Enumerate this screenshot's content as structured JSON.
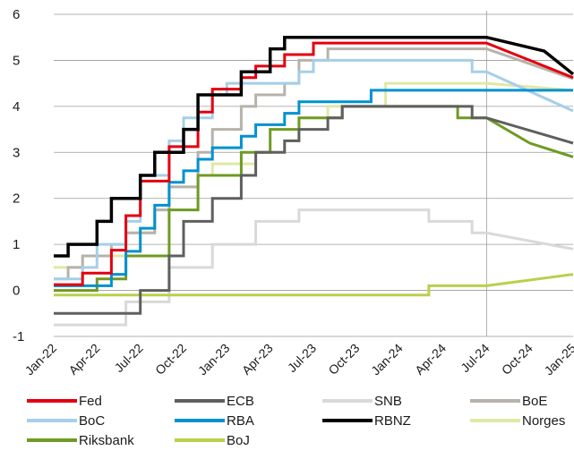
{
  "chart_data": {
    "type": "line",
    "title": "",
    "xlabel": "",
    "ylabel": "",
    "x_ticks": [
      "Jan-22",
      "Apr-22",
      "Jul-22",
      "Oct-22",
      "Jan-23",
      "Apr-23",
      "Jul-23",
      "Oct-23",
      "Jan-24",
      "Apr-24",
      "Jul-24",
      "Oct-24",
      "Jan-25"
    ],
    "y_ticks": [
      "6",
      "5",
      "4",
      "3",
      "2",
      "1",
      "0",
      "-1"
    ],
    "ylim": [
      -1,
      6
    ],
    "xlim": [
      "2022-01",
      "2025-01"
    ],
    "grid": "horizontal",
    "vertical_marker": "2024-07",
    "legend_position": "bottom",
    "series": [
      {
        "name": "Fed",
        "color": "#e3000f",
        "width": 3,
        "points": [
          [
            "2022-01",
            0.125
          ],
          [
            "2022-03",
            0.125
          ],
          [
            "2022-03",
            0.375
          ],
          [
            "2022-05",
            0.375
          ],
          [
            "2022-05",
            0.875
          ],
          [
            "2022-06",
            0.875
          ],
          [
            "2022-06",
            1.625
          ],
          [
            "2022-07",
            1.625
          ],
          [
            "2022-07",
            2.375
          ],
          [
            "2022-09",
            2.375
          ],
          [
            "2022-09",
            3.125
          ],
          [
            "2022-11",
            3.125
          ],
          [
            "2022-11",
            3.875
          ],
          [
            "2022-12",
            3.875
          ],
          [
            "2022-12",
            4.375
          ],
          [
            "2023-02",
            4.375
          ],
          [
            "2023-02",
            4.625
          ],
          [
            "2023-03",
            4.625
          ],
          [
            "2023-03",
            4.875
          ],
          [
            "2023-05",
            4.875
          ],
          [
            "2023-05",
            5.125
          ],
          [
            "2023-07",
            5.125
          ],
          [
            "2023-07",
            5.375
          ],
          [
            "2024-07",
            5.375
          ],
          [
            "2025-01",
            4.625
          ]
        ]
      },
      {
        "name": "ECB",
        "color": "#5f5f5f",
        "width": 3,
        "points": [
          [
            "2022-01",
            -0.5
          ],
          [
            "2022-07",
            -0.5
          ],
          [
            "2022-07",
            0.0
          ],
          [
            "2022-09",
            0.0
          ],
          [
            "2022-09",
            0.75
          ],
          [
            "2022-10",
            0.75
          ],
          [
            "2022-10",
            1.5
          ],
          [
            "2022-12",
            1.5
          ],
          [
            "2022-12",
            2.0
          ],
          [
            "2023-02",
            2.0
          ],
          [
            "2023-02",
            2.5
          ],
          [
            "2023-03",
            2.5
          ],
          [
            "2023-03",
            3.0
          ],
          [
            "2023-05",
            3.0
          ],
          [
            "2023-05",
            3.25
          ],
          [
            "2023-06",
            3.25
          ],
          [
            "2023-06",
            3.5
          ],
          [
            "2023-08",
            3.5
          ],
          [
            "2023-08",
            3.75
          ],
          [
            "2023-09",
            3.75
          ],
          [
            "2023-09",
            4.0
          ],
          [
            "2024-06",
            4.0
          ],
          [
            "2024-06",
            3.75
          ],
          [
            "2024-07",
            3.75
          ],
          [
            "2025-01",
            3.2
          ]
        ]
      },
      {
        "name": "SNB",
        "color": "#d9d9d9",
        "width": 3,
        "points": [
          [
            "2022-01",
            -0.75
          ],
          [
            "2022-06",
            -0.75
          ],
          [
            "2022-06",
            -0.25
          ],
          [
            "2022-09",
            -0.25
          ],
          [
            "2022-09",
            0.5
          ],
          [
            "2022-12",
            0.5
          ],
          [
            "2022-12",
            1.0
          ],
          [
            "2023-03",
            1.0
          ],
          [
            "2023-03",
            1.5
          ],
          [
            "2023-06",
            1.5
          ],
          [
            "2023-06",
            1.75
          ],
          [
            "2024-03",
            1.75
          ],
          [
            "2024-03",
            1.5
          ],
          [
            "2024-06",
            1.5
          ],
          [
            "2024-06",
            1.25
          ],
          [
            "2024-07",
            1.25
          ],
          [
            "2025-01",
            0.9
          ]
        ]
      },
      {
        "name": "BoE",
        "color": "#b7b2aa",
        "width": 3,
        "points": [
          [
            "2022-01",
            0.25
          ],
          [
            "2022-02",
            0.25
          ],
          [
            "2022-02",
            0.5
          ],
          [
            "2022-03",
            0.5
          ],
          [
            "2022-03",
            0.75
          ],
          [
            "2022-05",
            0.75
          ],
          [
            "2022-05",
            1.0
          ],
          [
            "2022-06",
            1.0
          ],
          [
            "2022-06",
            1.25
          ],
          [
            "2022-08",
            1.25
          ],
          [
            "2022-08",
            1.75
          ],
          [
            "2022-09",
            1.75
          ],
          [
            "2022-09",
            2.25
          ],
          [
            "2022-11",
            2.25
          ],
          [
            "2022-11",
            3.0
          ],
          [
            "2022-12",
            3.0
          ],
          [
            "2022-12",
            3.5
          ],
          [
            "2023-02",
            3.5
          ],
          [
            "2023-02",
            4.0
          ],
          [
            "2023-03",
            4.0
          ],
          [
            "2023-03",
            4.25
          ],
          [
            "2023-05",
            4.25
          ],
          [
            "2023-05",
            4.5
          ],
          [
            "2023-06",
            4.5
          ],
          [
            "2023-06",
            5.0
          ],
          [
            "2023-08",
            5.0
          ],
          [
            "2023-08",
            5.25
          ],
          [
            "2024-07",
            5.25
          ],
          [
            "2025-01",
            4.6
          ]
        ]
      },
      {
        "name": "BoC",
        "color": "#a5cfe8",
        "width": 3,
        "points": [
          [
            "2022-01",
            0.25
          ],
          [
            "2022-03",
            0.25
          ],
          [
            "2022-03",
            0.5
          ],
          [
            "2022-04",
            0.5
          ],
          [
            "2022-04",
            1.0
          ],
          [
            "2022-06",
            1.0
          ],
          [
            "2022-06",
            1.5
          ],
          [
            "2022-07",
            1.5
          ],
          [
            "2022-07",
            2.5
          ],
          [
            "2022-09",
            2.5
          ],
          [
            "2022-09",
            3.25
          ],
          [
            "2022-10",
            3.25
          ],
          [
            "2022-10",
            3.75
          ],
          [
            "2022-12",
            3.75
          ],
          [
            "2022-12",
            4.25
          ],
          [
            "2023-01",
            4.25
          ],
          [
            "2023-01",
            4.5
          ],
          [
            "2023-06",
            4.5
          ],
          [
            "2023-06",
            4.75
          ],
          [
            "2023-07",
            4.75
          ],
          [
            "2023-07",
            5.0
          ],
          [
            "2024-06",
            5.0
          ],
          [
            "2024-06",
            4.75
          ],
          [
            "2024-07",
            4.75
          ],
          [
            "2025-01",
            3.9
          ]
        ]
      },
      {
        "name": "RBA",
        "color": "#0091d0",
        "width": 3,
        "points": [
          [
            "2022-01",
            0.1
          ],
          [
            "2022-05",
            0.1
          ],
          [
            "2022-05",
            0.35
          ],
          [
            "2022-06",
            0.35
          ],
          [
            "2022-06",
            0.85
          ],
          [
            "2022-07",
            0.85
          ],
          [
            "2022-07",
            1.35
          ],
          [
            "2022-08",
            1.35
          ],
          [
            "2022-08",
            1.85
          ],
          [
            "2022-09",
            1.85
          ],
          [
            "2022-09",
            2.35
          ],
          [
            "2022-10",
            2.35
          ],
          [
            "2022-10",
            2.6
          ],
          [
            "2022-11",
            2.6
          ],
          [
            "2022-11",
            2.85
          ],
          [
            "2022-12",
            2.85
          ],
          [
            "2022-12",
            3.1
          ],
          [
            "2023-02",
            3.1
          ],
          [
            "2023-02",
            3.35
          ],
          [
            "2023-03",
            3.35
          ],
          [
            "2023-03",
            3.6
          ],
          [
            "2023-05",
            3.6
          ],
          [
            "2023-05",
            3.85
          ],
          [
            "2023-06",
            3.85
          ],
          [
            "2023-06",
            4.1
          ],
          [
            "2023-11",
            4.1
          ],
          [
            "2023-11",
            4.35
          ],
          [
            "2024-07",
            4.35
          ],
          [
            "2025-01",
            4.35
          ]
        ]
      },
      {
        "name": "RBNZ",
        "color": "#000000",
        "width": 3.5,
        "points": [
          [
            "2022-01",
            0.75
          ],
          [
            "2022-02",
            0.75
          ],
          [
            "2022-02",
            1.0
          ],
          [
            "2022-04",
            1.0
          ],
          [
            "2022-04",
            1.5
          ],
          [
            "2022-05",
            1.5
          ],
          [
            "2022-05",
            2.0
          ],
          [
            "2022-07",
            2.0
          ],
          [
            "2022-07",
            2.5
          ],
          [
            "2022-08",
            2.5
          ],
          [
            "2022-08",
            3.0
          ],
          [
            "2022-10",
            3.0
          ],
          [
            "2022-10",
            3.5
          ],
          [
            "2022-11",
            3.5
          ],
          [
            "2022-11",
            4.25
          ],
          [
            "2023-02",
            4.25
          ],
          [
            "2023-02",
            4.75
          ],
          [
            "2023-04",
            4.75
          ],
          [
            "2023-04",
            5.25
          ],
          [
            "2023-05",
            5.25
          ],
          [
            "2023-05",
            5.5
          ],
          [
            "2024-07",
            5.5
          ],
          [
            "2024-11",
            5.2
          ],
          [
            "2025-01",
            4.7
          ]
        ]
      },
      {
        "name": "Norges",
        "color": "#e0e8a8",
        "width": 3,
        "points": [
          [
            "2022-01",
            0.5
          ],
          [
            "2022-03",
            0.5
          ],
          [
            "2022-03",
            0.75
          ],
          [
            "2022-06",
            0.75
          ],
          [
            "2022-06",
            1.25
          ],
          [
            "2022-08",
            1.25
          ],
          [
            "2022-08",
            1.75
          ],
          [
            "2022-09",
            1.75
          ],
          [
            "2022-09",
            2.25
          ],
          [
            "2022-11",
            2.25
          ],
          [
            "2022-11",
            2.5
          ],
          [
            "2022-12",
            2.5
          ],
          [
            "2022-12",
            2.75
          ],
          [
            "2023-03",
            2.75
          ],
          [
            "2023-03",
            3.0
          ],
          [
            "2023-05",
            3.0
          ],
          [
            "2023-05",
            3.25
          ],
          [
            "2023-06",
            3.25
          ],
          [
            "2023-06",
            3.75
          ],
          [
            "2023-08",
            3.75
          ],
          [
            "2023-08",
            4.0
          ],
          [
            "2023-12",
            4.0
          ],
          [
            "2023-12",
            4.5
          ],
          [
            "2024-07",
            4.5
          ],
          [
            "2025-01",
            4.35
          ]
        ]
      },
      {
        "name": "Riksbank",
        "color": "#6f9a23",
        "width": 3,
        "points": [
          [
            "2022-01",
            0.0
          ],
          [
            "2022-04",
            0.0
          ],
          [
            "2022-04",
            0.25
          ],
          [
            "2022-06",
            0.25
          ],
          [
            "2022-06",
            0.75
          ],
          [
            "2022-09",
            0.75
          ],
          [
            "2022-09",
            1.75
          ],
          [
            "2022-11",
            1.75
          ],
          [
            "2022-11",
            2.5
          ],
          [
            "2023-02",
            2.5
          ],
          [
            "2023-02",
            3.0
          ],
          [
            "2023-04",
            3.0
          ],
          [
            "2023-04",
            3.5
          ],
          [
            "2023-06",
            3.5
          ],
          [
            "2023-06",
            3.75
          ],
          [
            "2023-09",
            3.75
          ],
          [
            "2023-09",
            4.0
          ],
          [
            "2024-05",
            4.0
          ],
          [
            "2024-05",
            3.75
          ],
          [
            "2024-07",
            3.75
          ],
          [
            "2024-10",
            3.2
          ],
          [
            "2025-01",
            2.9
          ]
        ]
      },
      {
        "name": "BoJ",
        "color": "#b9d04b",
        "width": 3,
        "points": [
          [
            "2022-01",
            -0.1
          ],
          [
            "2024-03",
            -0.1
          ],
          [
            "2024-03",
            0.1
          ],
          [
            "2024-07",
            0.1
          ],
          [
            "2025-01",
            0.35
          ]
        ]
      }
    ]
  }
}
